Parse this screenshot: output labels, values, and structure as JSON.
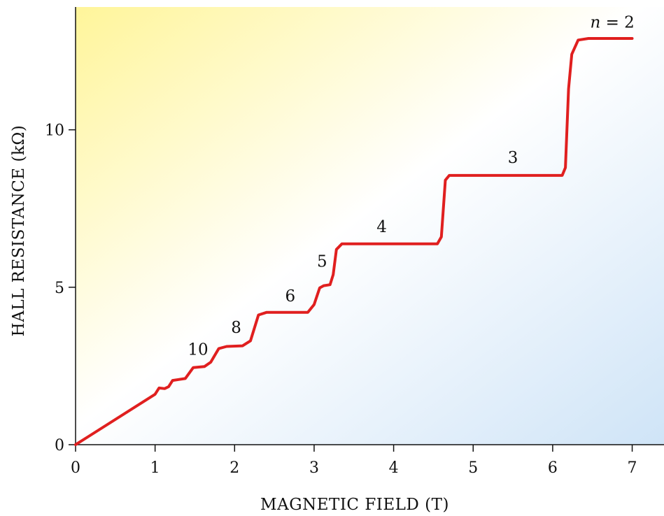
{
  "chart_data": {
    "type": "line",
    "xlabel": "MAGNETIC FIELD (T)",
    "ylabel": "HALL RESISTANCE (kΩ)",
    "xlim": [
      0,
      7.4
    ],
    "ylim": [
      0,
      13.9
    ],
    "x_ticks": [
      0,
      1,
      2,
      3,
      4,
      5,
      6,
      7
    ],
    "y_ticks": [
      0,
      5,
      10
    ],
    "x_tick_labels": [
      "0",
      "1",
      "2",
      "3",
      "4",
      "5",
      "6",
      "7"
    ],
    "y_tick_labels": [
      "0",
      "5",
      "10"
    ],
    "grid": false,
    "background_gradient": [
      "#fff59a",
      "#ffffff",
      "#cfe4f7"
    ],
    "series": [
      {
        "color": "#e01f1f",
        "points": [
          [
            0,
            0
          ],
          [
            1.0,
            1.6
          ],
          [
            1.05,
            1.8
          ],
          [
            1.12,
            1.78
          ],
          [
            1.17,
            1.84
          ],
          [
            1.22,
            2.04
          ],
          [
            1.38,
            2.1
          ],
          [
            1.48,
            2.45
          ],
          [
            1.62,
            2.48
          ],
          [
            1.7,
            2.62
          ],
          [
            1.8,
            3.05
          ],
          [
            1.9,
            3.12
          ],
          [
            2.1,
            3.14
          ],
          [
            2.2,
            3.3
          ],
          [
            2.3,
            4.12
          ],
          [
            2.4,
            4.2
          ],
          [
            2.92,
            4.2
          ],
          [
            3.0,
            4.45
          ],
          [
            3.07,
            4.98
          ],
          [
            3.12,
            5.05
          ],
          [
            3.2,
            5.08
          ],
          [
            3.24,
            5.4
          ],
          [
            3.28,
            6.2
          ],
          [
            3.35,
            6.38
          ],
          [
            4.55,
            6.38
          ],
          [
            4.6,
            6.6
          ],
          [
            4.65,
            8.4
          ],
          [
            4.7,
            8.55
          ],
          [
            6.12,
            8.55
          ],
          [
            6.16,
            8.8
          ],
          [
            6.2,
            11.3
          ],
          [
            6.24,
            12.4
          ],
          [
            6.32,
            12.85
          ],
          [
            6.45,
            12.9
          ],
          [
            7.0,
            12.9
          ]
        ]
      }
    ],
    "annotations": [
      {
        "text": "10",
        "x": 1.54,
        "y": 2.85
      },
      {
        "text": "8",
        "x": 2.02,
        "y": 3.55
      },
      {
        "text": "6",
        "x": 2.7,
        "y": 4.55
      },
      {
        "text": "5",
        "x": 3.1,
        "y": 5.65
      },
      {
        "text": "4",
        "x": 3.85,
        "y": 6.75
      },
      {
        "text": "3",
        "x": 5.5,
        "y": 8.95
      },
      {
        "text": "n = 2",
        "x": 6.75,
        "y": 13.25
      }
    ]
  }
}
